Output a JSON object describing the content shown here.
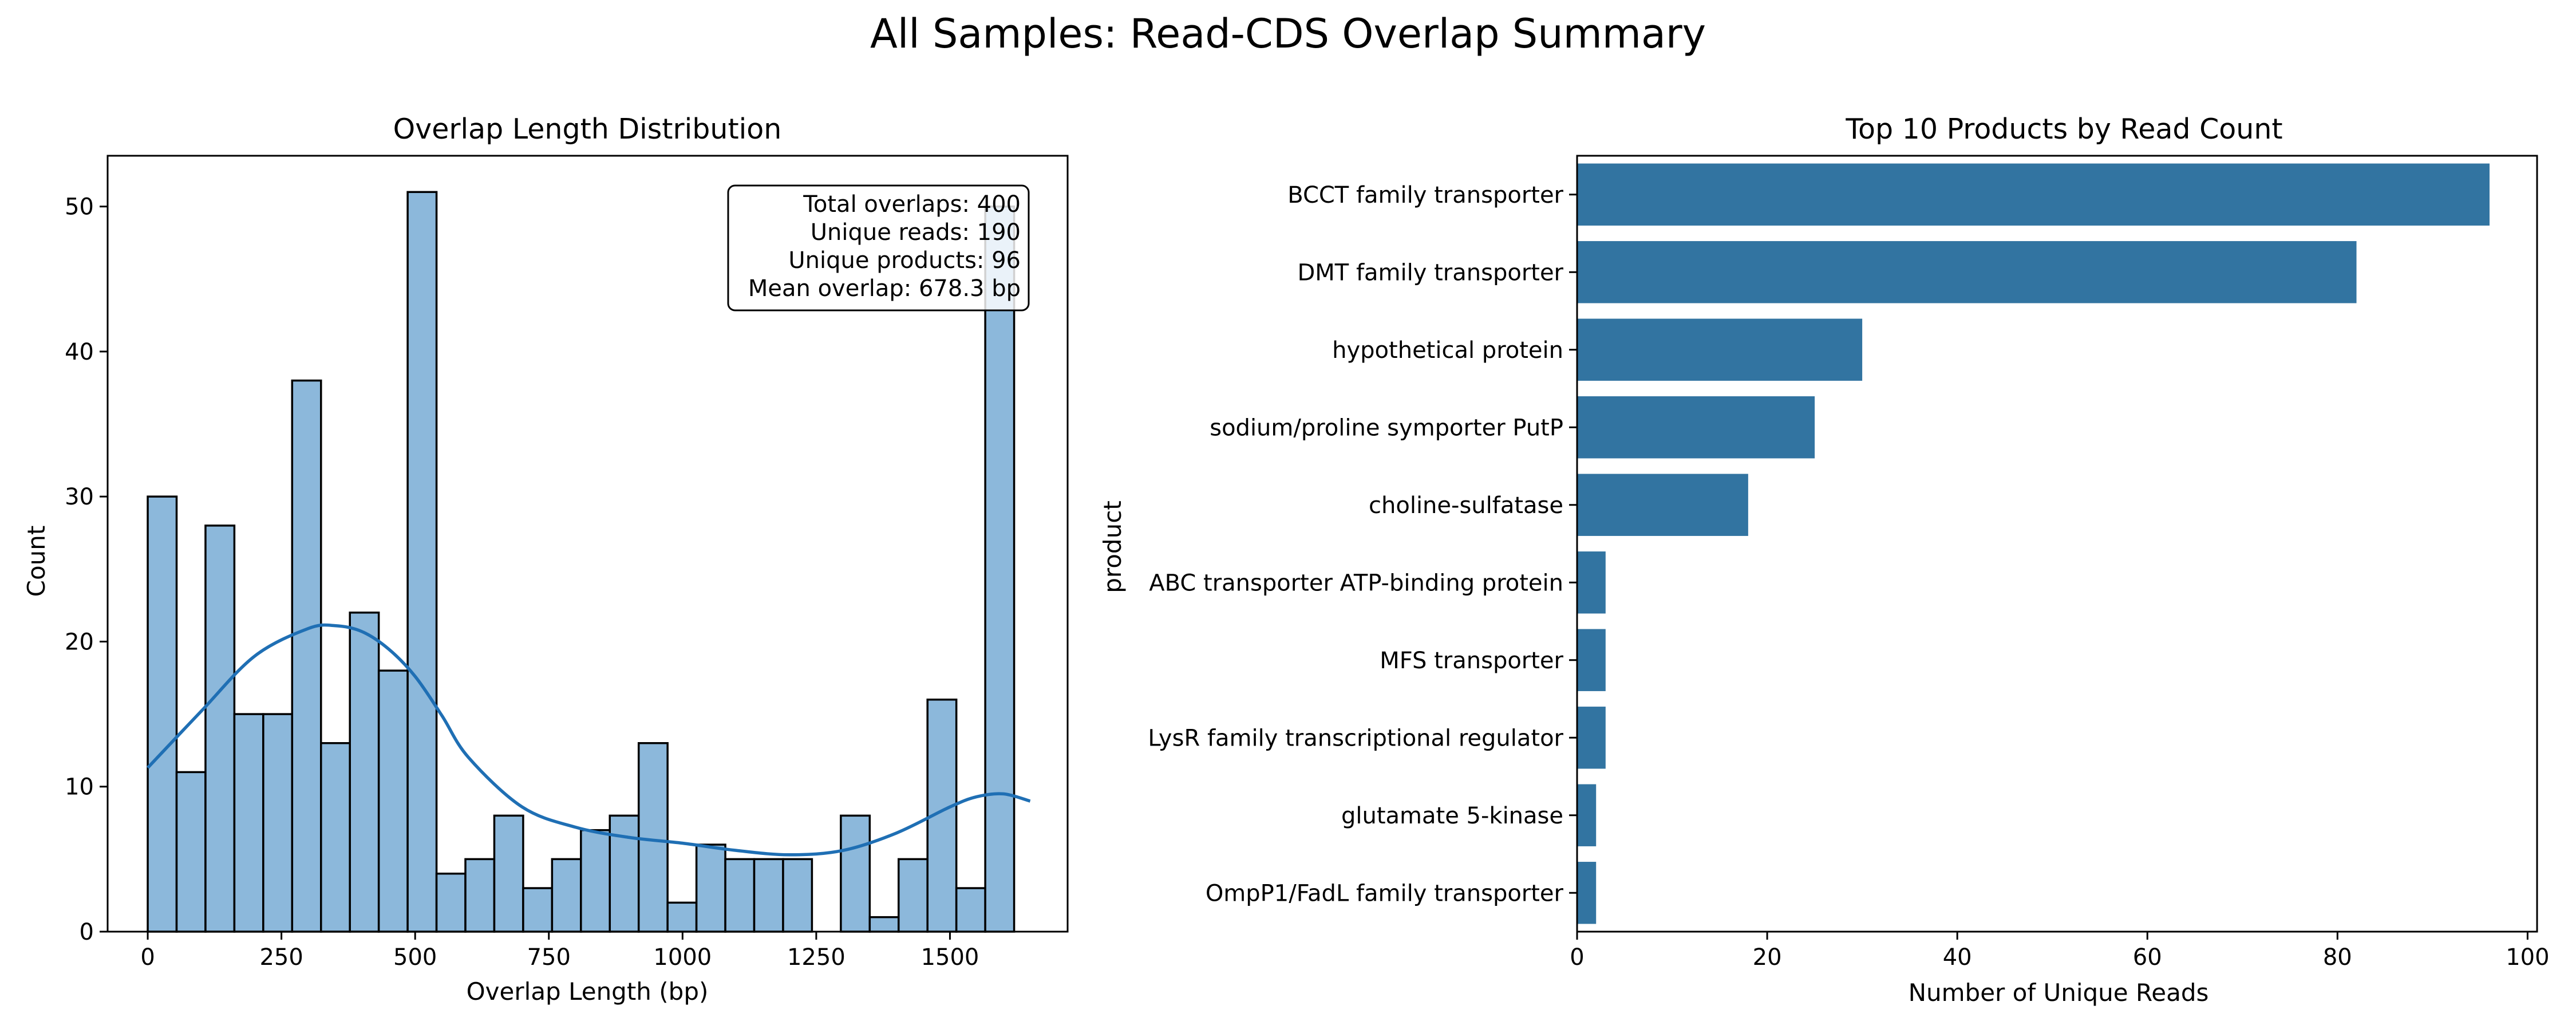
{
  "figure": {
    "title": "All Samples: Read-CDS Overlap Summary"
  },
  "hist_panel": {
    "title": "Overlap Length Distribution",
    "xlabel": "Overlap Length (bp)",
    "ylabel": "Count",
    "x_ticks": [
      "0",
      "250",
      "500",
      "750",
      "1000",
      "1250",
      "1500"
    ],
    "y_ticks": [
      "0",
      "10",
      "20",
      "30",
      "40",
      "50"
    ],
    "stats": [
      "Total overlaps: 400",
      "Unique reads: 190",
      "Unique products: 96",
      "Mean overlap: 678.3 bp"
    ]
  },
  "bar_panel": {
    "title": "Top 10 Products by Read Count",
    "xlabel": "Number of Unique Reads",
    "ylabel": "product",
    "x_ticks": [
      "0",
      "20",
      "40",
      "60",
      "80",
      "100"
    ]
  },
  "colors": {
    "hist_fill": "#8cb8db",
    "bar_fill": "#3274a1",
    "kde_line": "#1f6fb4"
  },
  "chart_data": [
    {
      "type": "histogram",
      "title": "Overlap Length Distribution",
      "xlabel": "Overlap Length (bp)",
      "ylabel": "Count",
      "xlim": [
        -75,
        1720
      ],
      "ylim": [
        0,
        53.5
      ],
      "bin_edges": [
        0,
        54,
        108,
        162,
        216,
        270,
        324,
        378,
        432,
        486,
        540,
        594,
        648,
        702,
        756,
        810,
        864,
        918,
        972,
        1026,
        1080,
        1134,
        1188,
        1242,
        1296,
        1350,
        1404,
        1458,
        1512,
        1566,
        1620
      ],
      "counts": [
        30,
        11,
        28,
        15,
        15,
        38,
        13,
        22,
        18,
        51,
        4,
        5,
        8,
        3,
        5,
        7,
        8,
        13,
        2,
        6,
        5,
        5,
        5,
        0,
        8,
        1,
        5,
        16,
        3,
        50
      ],
      "kde": {
        "x": [
          0,
          100,
          200,
          300,
          350,
          400,
          450,
          500,
          550,
          600,
          700,
          800,
          900,
          1000,
          1100,
          1200,
          1300,
          1400,
          1500,
          1550,
          1600,
          1650
        ],
        "y": [
          11.3,
          15.2,
          19.0,
          20.9,
          21.1,
          20.7,
          19.5,
          17.6,
          14.9,
          12.0,
          8.6,
          7.2,
          6.5,
          6.1,
          5.6,
          5.3,
          5.6,
          6.8,
          8.6,
          9.3,
          9.5,
          9.0
        ]
      },
      "grid": false
    },
    {
      "type": "bar",
      "orientation": "horizontal",
      "title": "Top 10 Products by Read Count",
      "xlabel": "Number of Unique Reads",
      "ylabel": "product",
      "xlim": [
        0,
        101
      ],
      "categories": [
        "BCCT family transporter",
        "DMT family transporter",
        "hypothetical protein",
        "sodium/proline symporter PutP",
        "choline-sulfatase",
        "ABC transporter ATP-binding protein",
        "MFS transporter",
        "LysR family transcriptional regulator",
        "glutamate 5-kinase",
        "OmpP1/FadL family transporter"
      ],
      "values": [
        96,
        82,
        30,
        25,
        18,
        3,
        3,
        3,
        2,
        2
      ],
      "grid": false
    }
  ]
}
